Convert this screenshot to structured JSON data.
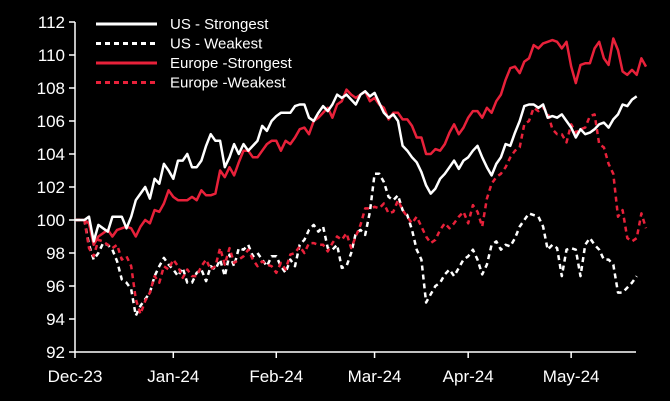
{
  "chart_data": {
    "type": "line",
    "title": "",
    "xlabel": "",
    "ylabel": "",
    "ylim": [
      92,
      112
    ],
    "yticks": [
      92,
      94,
      96,
      98,
      100,
      102,
      104,
      106,
      108,
      110,
      112
    ],
    "x_tick_labels": [
      "Dec-23",
      "Jan-24",
      "Feb-24",
      "Mar-24",
      "Apr-24",
      "May-24"
    ],
    "x_tick_positions": [
      0,
      21,
      43,
      64,
      84,
      106
    ],
    "x_max": 119,
    "legend_position": "top-left",
    "grid": false,
    "series": [
      {
        "name": "US - Strongest",
        "color": "#ffffff",
        "style": "solid",
        "values": [
          100,
          100,
          100,
          100.2,
          98.7,
          99.7,
          99.5,
          99.3,
          100.2,
          100.2,
          100.2,
          99.5,
          100.2,
          101.2,
          101.6,
          102,
          101.3,
          102.5,
          102.2,
          103.4,
          103,
          102.5,
          103.6,
          103.6,
          104,
          103.2,
          103.2,
          103.6,
          104.5,
          105.2,
          104.8,
          104.8,
          103.2,
          103.8,
          104.6,
          104,
          104.6,
          104.2,
          104.5,
          104.8,
          105.7,
          105.4,
          106,
          106.3,
          106.5,
          106.5,
          106.5,
          106.9,
          107,
          107,
          106.2,
          106,
          106.5,
          106.9,
          106.6,
          107,
          107.6,
          107.4,
          107.6,
          107.3,
          107,
          107.6,
          107.8,
          107.5,
          107.7,
          107.1,
          106.5,
          106.2,
          106.4,
          106,
          104.5,
          104.2,
          103.8,
          103.5,
          102.9,
          102.1,
          101.6,
          101.9,
          102.5,
          102.8,
          103.2,
          103.6,
          103.1,
          103.6,
          103.8,
          104.2,
          104.5,
          103.8,
          103.2,
          102.7,
          103.4,
          103.8,
          104.6,
          104.5,
          105.3,
          106,
          106.9,
          107,
          107,
          106.8,
          107,
          106.2,
          106.3,
          106.2,
          106.4,
          106,
          105.6,
          105,
          105.5,
          105.2,
          105.3,
          105.5,
          105.8,
          105.9,
          105.6,
          106.1,
          106.4,
          107,
          106.9,
          107.3,
          107.5
        ]
      },
      {
        "name": "US - Weakest",
        "color": "#ffffff",
        "style": "dashed",
        "values": [
          100,
          100,
          100,
          98.5,
          97.6,
          98,
          98.6,
          98.5,
          98.2,
          97.5,
          96.4,
          96.2,
          95.8,
          94.2,
          94.8,
          95.2,
          95.6,
          96.6,
          97.2,
          97.7,
          97.3,
          97,
          96.6,
          97.1,
          96.2,
          96.2,
          96.8,
          97,
          96.3,
          97.2,
          97,
          97.6,
          96.6,
          97.9,
          97.2,
          98.3,
          98.2,
          98.5,
          97.8,
          98,
          97.6,
          97.2,
          97.8,
          97.8,
          97.2,
          96.8,
          97.6,
          97.2,
          98.5,
          98.8,
          99.4,
          99.7,
          99.3,
          99.6,
          98.3,
          98.2,
          98.5,
          97.1,
          97.2,
          98,
          99.2,
          99.4,
          99.1,
          100.5,
          102.8,
          102.8,
          102.3,
          101.4,
          101.2,
          101.5,
          100.6,
          100.3,
          99.4,
          98.2,
          97.6,
          95,
          95.5,
          96,
          96.2,
          96.7,
          97,
          96.6,
          97.1,
          97.6,
          97.8,
          98.2,
          97.6,
          96.7,
          97.3,
          98.5,
          98.7,
          98.2,
          98.5,
          98.4,
          98.9,
          99.6,
          100,
          100.4,
          100.3,
          100.2,
          99.6,
          98.2,
          98.5,
          98.3,
          96.6,
          98.2,
          98.3,
          98.2,
          96.6,
          98.5,
          98.9,
          98.5,
          98.2,
          97.6,
          97.6,
          97.3,
          95.6,
          95.6,
          95.9,
          96.2,
          96.6
        ]
      },
      {
        "name": "Europe -Strongest",
        "color": "#e8213a",
        "style": "solid",
        "values": [
          100,
          100,
          100,
          99.8,
          98.5,
          99,
          99.2,
          99.4,
          99,
          99.4,
          99.5,
          99.6,
          99.5,
          99,
          99.6,
          100,
          99.8,
          100.6,
          100.5,
          101,
          101.8,
          101.4,
          101.2,
          101.2,
          101.2,
          101.4,
          101.2,
          101.8,
          101.5,
          101.5,
          101.6,
          103,
          102.6,
          103.2,
          102.7,
          103.5,
          104.2,
          104.2,
          103.8,
          103.8,
          104.2,
          104.6,
          104.8,
          104.8,
          104.2,
          104.8,
          104.6,
          105,
          105.5,
          105.6,
          105.2,
          106,
          106.2,
          106.5,
          106.8,
          106.2,
          107,
          107.2,
          107.9,
          107.6,
          107.4,
          107.6,
          107.8,
          107.2,
          107.4,
          107,
          106.8,
          106.1,
          106.5,
          106.5,
          106.1,
          106.1,
          105.7,
          105,
          105,
          104,
          104,
          104.3,
          104.2,
          104.6,
          105.3,
          105.8,
          105.2,
          105.6,
          106.2,
          106.6,
          106.6,
          106.2,
          106.8,
          106.5,
          107.2,
          107.6,
          108.5,
          109.2,
          109.3,
          108.9,
          109.6,
          109.8,
          110.6,
          110.4,
          110.7,
          110.8,
          110.9,
          110.8,
          110.4,
          110.8,
          109.3,
          108.3,
          109.4,
          109.5,
          109.5,
          110.4,
          110.8,
          109.8,
          109.4,
          111,
          110.3,
          109,
          108.8,
          109.1,
          108.8,
          109.8,
          109.3
        ]
      },
      {
        "name": "Europe -Weakest",
        "color": "#e8213a",
        "style": "dashed",
        "values": [
          100,
          100,
          100,
          98.3,
          97.8,
          98.8,
          98.7,
          98.5,
          98.3,
          98.5,
          97.6,
          97.8,
          97.2,
          95.2,
          94.3,
          95.1,
          95.6,
          96.6,
          96.2,
          97.2,
          97,
          97.6,
          97.2,
          96.5,
          97,
          96.6,
          96.6,
          97.2,
          97.6,
          97,
          97.2,
          98.3,
          97.3,
          98.3,
          97.4,
          97.6,
          97.8,
          98.2,
          97.6,
          97.2,
          97.5,
          97.3,
          97.2,
          96.8,
          97.4,
          97,
          97.9,
          98,
          98.4,
          98,
          98.6,
          98.6,
          98.5,
          98.5,
          98.1,
          98.6,
          99,
          98.8,
          99.2,
          98.3,
          99,
          99.7,
          100.7,
          100.7,
          100.8,
          100.7,
          101,
          100.4,
          100.5,
          101.2,
          100.6,
          100.2,
          99.8,
          100.2,
          99.6,
          99,
          98.6,
          98.8,
          99.4,
          99.8,
          99.5,
          99.8,
          100.2,
          100.5,
          99.8,
          100.9,
          100.5,
          99.6,
          101.3,
          102.2,
          102.6,
          102.8,
          103.2,
          103.8,
          104.2,
          104.4,
          105.8,
          106,
          106.8,
          106.6,
          106.8,
          106.5,
          105.5,
          105.2,
          105.2,
          104.7,
          105.8,
          105.3,
          105.5,
          105.6,
          106.3,
          106.4,
          104.6,
          104.4,
          103.4,
          102.8,
          100.2,
          100.6,
          98.9,
          98.7,
          98.9,
          100.4,
          99.5
        ]
      }
    ]
  }
}
